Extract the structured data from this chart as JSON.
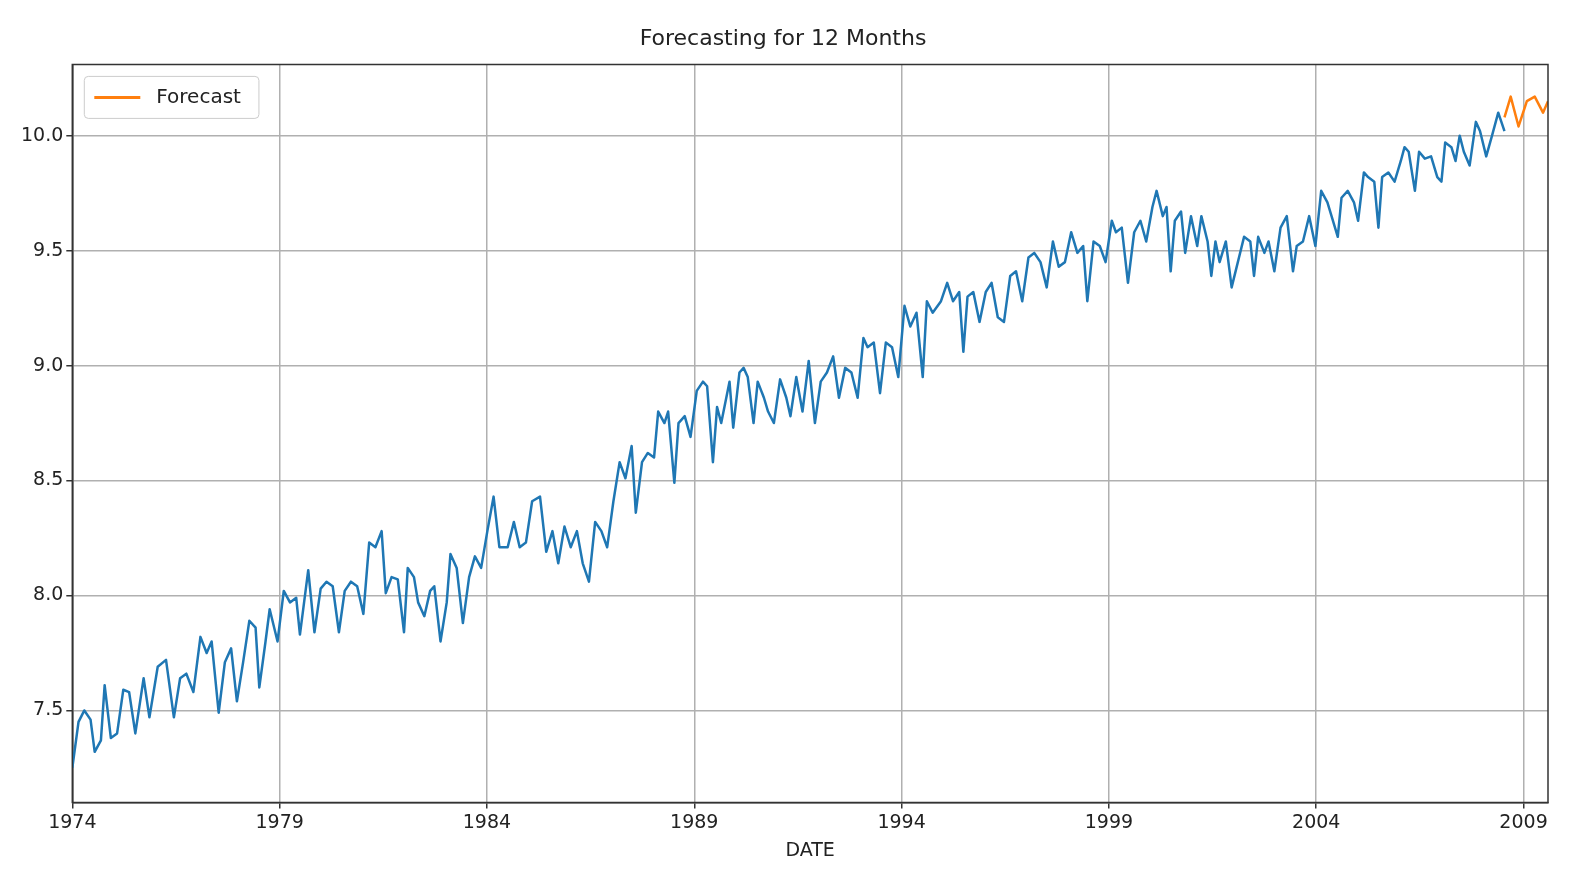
{
  "chart_data": {
    "type": "line",
    "title": "Forecasting for 12 Months",
    "xlabel": "DATE",
    "xlim": [
      1974,
      2009.59
    ],
    "xticks": [
      1974,
      1979,
      1984,
      1989,
      1994,
      1999,
      2004,
      2009
    ],
    "ylim": [
      7.1,
      10.31
    ],
    "yticks": [
      {
        "value": 7.5,
        "label": "7.5"
      },
      {
        "value": 8,
        "label": "8.0"
      },
      {
        "value": 8.5,
        "label": "8.5"
      },
      {
        "value": 9,
        "label": "9.0"
      },
      {
        "value": 9.5,
        "label": "9.5"
      },
      {
        "value": 10,
        "label": "10.0"
      }
    ],
    "grid": true,
    "legend": "top left",
    "series": [
      {
        "color": "#1f77b4",
        "x": [
          1974.0,
          1974.15,
          1974.29,
          1974.44,
          1974.54,
          1974.69,
          1974.78,
          1974.93,
          1975.08,
          1975.23,
          1975.37,
          1975.52,
          1975.72,
          1975.86,
          1976.06,
          1976.26,
          1976.45,
          1976.6,
          1976.75,
          1976.92,
          1977.09,
          1977.24,
          1977.36,
          1977.53,
          1977.68,
          1977.83,
          1977.97,
          1978.12,
          1978.27,
          1978.42,
          1978.51,
          1978.66,
          1978.76,
          1978.95,
          1979.1,
          1979.25,
          1979.4,
          1979.49,
          1979.69,
          1979.84,
          1979.99,
          1980.13,
          1980.28,
          1980.43,
          1980.57,
          1980.72,
          1980.87,
          1981.02,
          1981.16,
          1981.31,
          1981.46,
          1981.56,
          1981.7,
          1981.85,
          1982.0,
          1982.09,
          1982.24,
          1982.34,
          1982.49,
          1982.63,
          1982.73,
          1982.88,
          1983.03,
          1983.12,
          1983.27,
          1983.42,
          1983.57,
          1983.71,
          1983.86,
          1984.01,
          1984.16,
          1984.3,
          1984.5,
          1984.65,
          1984.79,
          1984.94,
          1985.09,
          1985.28,
          1985.43,
          1985.58,
          1985.72,
          1985.87,
          1986.02,
          1986.17,
          1986.31,
          1986.46,
          1986.61,
          1986.76,
          1986.9,
          1987.05,
          1987.2,
          1987.34,
          1987.49,
          1987.59,
          1987.74,
          1987.88,
          1988.03,
          1988.13,
          1988.28,
          1988.37,
          1988.52,
          1988.62,
          1988.77,
          1988.91,
          1989.06,
          1989.21,
          1989.31,
          1989.45,
          1989.55,
          1989.65,
          1989.85,
          1989.94,
          1990.09,
          1990.19,
          1990.29,
          1990.43,
          1990.53,
          1990.68,
          1990.78,
          1990.92,
          1991.07,
          1991.22,
          1991.32,
          1991.46,
          1991.61,
          1991.76,
          1991.91,
          1992.05,
          1992.2,
          1992.35,
          1992.49,
          1992.64,
          1992.79,
          1992.94,
          1993.08,
          1993.18,
          1993.33,
          1993.48,
          1993.62,
          1993.77,
          1993.92,
          1994.07,
          1994.21,
          1994.36,
          1994.51,
          1994.61,
          1994.75,
          1994.95,
          1995.1,
          1995.24,
          1995.39,
          1995.49,
          1995.59,
          1995.73,
          1995.88,
          1996.03,
          1996.17,
          1996.32,
          1996.47,
          1996.62,
          1996.76,
          1996.91,
          1997.06,
          1997.2,
          1997.35,
          1997.5,
          1997.65,
          1997.79,
          1997.94,
          1998.09,
          1998.24,
          1998.38,
          1998.48,
          1998.63,
          1998.78,
          1998.92,
          1999.07,
          1999.17,
          1999.31,
          1999.46,
          1999.61,
          1999.76,
          1999.9,
          2000.05,
          2000.15,
          2000.3,
          2000.39,
          2000.49,
          2000.59,
          2000.74,
          2000.84,
          2000.98,
          2001.13,
          2001.23,
          2001.38,
          2001.47,
          2001.57,
          2001.67,
          2001.82,
          2001.96,
          2002.11,
          2002.26,
          2002.41,
          2002.5,
          2002.6,
          2002.75,
          2002.85,
          2002.99,
          2003.14,
          2003.29,
          2003.44,
          2003.53,
          2003.68,
          2003.83,
          2003.98,
          2004.12,
          2004.27,
          2004.37,
          2004.52,
          2004.61,
          2004.76,
          2004.91,
          2005.01,
          2005.15,
          2005.25,
          2005.4,
          2005.5,
          2005.59,
          2005.74,
          2005.89,
          2006.04,
          2006.13,
          2006.23,
          2006.38,
          2006.48,
          2006.62,
          2006.77,
          2006.92,
          2007.02,
          2007.11,
          2007.26,
          2007.36,
          2007.46,
          2007.56,
          2007.7,
          2007.85,
          2007.95,
          2008.1,
          2008.24,
          2008.39,
          2008.54
        ],
        "values": [
          7.25,
          7.45,
          7.5,
          7.46,
          7.32,
          7.37,
          7.61,
          7.38,
          7.4,
          7.59,
          7.58,
          7.4,
          7.64,
          7.47,
          7.69,
          7.72,
          7.47,
          7.64,
          7.66,
          7.58,
          7.82,
          7.75,
          7.8,
          7.49,
          7.71,
          7.77,
          7.54,
          7.71,
          7.89,
          7.86,
          7.6,
          7.8,
          7.94,
          7.8,
          8.02,
          7.97,
          7.99,
          7.83,
          8.11,
          7.84,
          8.03,
          8.06,
          8.04,
          7.84,
          8.02,
          8.06,
          8.04,
          7.92,
          8.23,
          8.21,
          8.28,
          8.01,
          8.08,
          8.07,
          7.84,
          8.12,
          8.08,
          7.97,
          7.91,
          8.02,
          8.04,
          7.8,
          7.97,
          8.18,
          8.12,
          7.88,
          8.08,
          8.17,
          8.12,
          8.28,
          8.43,
          8.21,
          8.21,
          8.32,
          8.21,
          8.23,
          8.41,
          8.43,
          8.19,
          8.28,
          8.14,
          8.3,
          8.21,
          8.28,
          8.14,
          8.06,
          8.32,
          8.28,
          8.21,
          8.41,
          8.58,
          8.51,
          8.65,
          8.36,
          8.58,
          8.62,
          8.6,
          8.8,
          8.75,
          8.8,
          8.49,
          8.75,
          8.78,
          8.69,
          8.89,
          8.93,
          8.91,
          8.58,
          8.82,
          8.75,
          8.93,
          8.73,
          8.97,
          8.99,
          8.95,
          8.75,
          8.93,
          8.86,
          8.8,
          8.75,
          8.94,
          8.86,
          8.78,
          8.95,
          8.8,
          9.02,
          8.75,
          8.93,
          8.97,
          9.04,
          8.86,
          8.99,
          8.97,
          8.86,
          9.12,
          9.08,
          9.1,
          8.88,
          9.1,
          9.08,
          8.95,
          9.26,
          9.17,
          9.23,
          8.95,
          9.28,
          9.23,
          9.28,
          9.36,
          9.28,
          9.32,
          9.06,
          9.3,
          9.32,
          9.19,
          9.32,
          9.36,
          9.21,
          9.19,
          9.39,
          9.41,
          9.28,
          9.47,
          9.49,
          9.45,
          9.34,
          9.54,
          9.43,
          9.45,
          9.58,
          9.49,
          9.52,
          9.28,
          9.54,
          9.52,
          9.45,
          9.63,
          9.58,
          9.6,
          9.36,
          9.58,
          9.63,
          9.54,
          9.69,
          9.76,
          9.65,
          9.69,
          9.41,
          9.63,
          9.67,
          9.49,
          9.65,
          9.52,
          9.65,
          9.54,
          9.39,
          9.54,
          9.45,
          9.54,
          9.34,
          9.45,
          9.56,
          9.54,
          9.39,
          9.56,
          9.49,
          9.54,
          9.41,
          9.6,
          9.65,
          9.41,
          9.52,
          9.54,
          9.65,
          9.52,
          9.76,
          9.71,
          9.65,
          9.56,
          9.73,
          9.76,
          9.71,
          9.63,
          9.84,
          9.82,
          9.8,
          9.6,
          9.82,
          9.84,
          9.8,
          9.89,
          9.95,
          9.93,
          9.76,
          9.93,
          9.9,
          9.91,
          9.82,
          9.8,
          9.97,
          9.95,
          9.89,
          10.0,
          9.93,
          9.87,
          10.06,
          10.02,
          9.91,
          10.0,
          10.1,
          10.02
        ]
      },
      {
        "name": "Forecast",
        "color": "#ff7f0e",
        "x": [
          2008.54,
          2008.69,
          2008.88,
          2009.08,
          2009.27,
          2009.47,
          2009.59
        ],
        "values": [
          10.08,
          10.17,
          10.04,
          10.15,
          10.17,
          10.1,
          10.15
        ]
      }
    ]
  }
}
